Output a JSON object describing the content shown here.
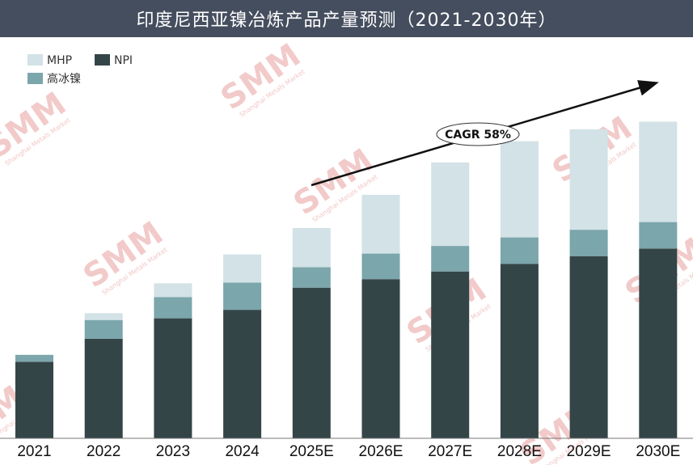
{
  "title": "印度尼西亚镍冶炼产品产量预测（2021-2030年）",
  "watermark": {
    "logo": "SMM",
    "sub": "Shanghai Metals Market"
  },
  "chart_data": {
    "type": "bar",
    "stacked": true,
    "title": "印度尼西亚镍冶炼产品产量预测（2021-2030年）",
    "categories": [
      "2021",
      "2022",
      "2023",
      "2024",
      "2025E",
      "2026E",
      "2027E",
      "2028E",
      "2029E",
      "2030E"
    ],
    "series": [
      {
        "name": "NPI",
        "color": "#344548",
        "values": [
          90,
          117,
          141,
          151,
          177,
          187,
          196,
          205,
          214,
          223
        ]
      },
      {
        "name": "高冰镍",
        "color": "#7ba6ab",
        "values": [
          8,
          22,
          25,
          32,
          24,
          30,
          30,
          31,
          31,
          31
        ]
      },
      {
        "name": "MHP",
        "color": "#d2e2e6",
        "values": [
          0,
          8,
          16,
          33,
          46,
          69,
          98,
          113,
          118,
          118
        ]
      }
    ],
    "ylim": [
      0,
      380
    ],
    "axes_visible": {
      "y": false,
      "x_line": true
    },
    "grid": false,
    "legend": {
      "placement": "top-left",
      "entries": [
        "MHP",
        "NPI",
        "高冰镍"
      ]
    },
    "annotation": {
      "text": "CAGR 58%",
      "type": "trend-arrow"
    }
  }
}
